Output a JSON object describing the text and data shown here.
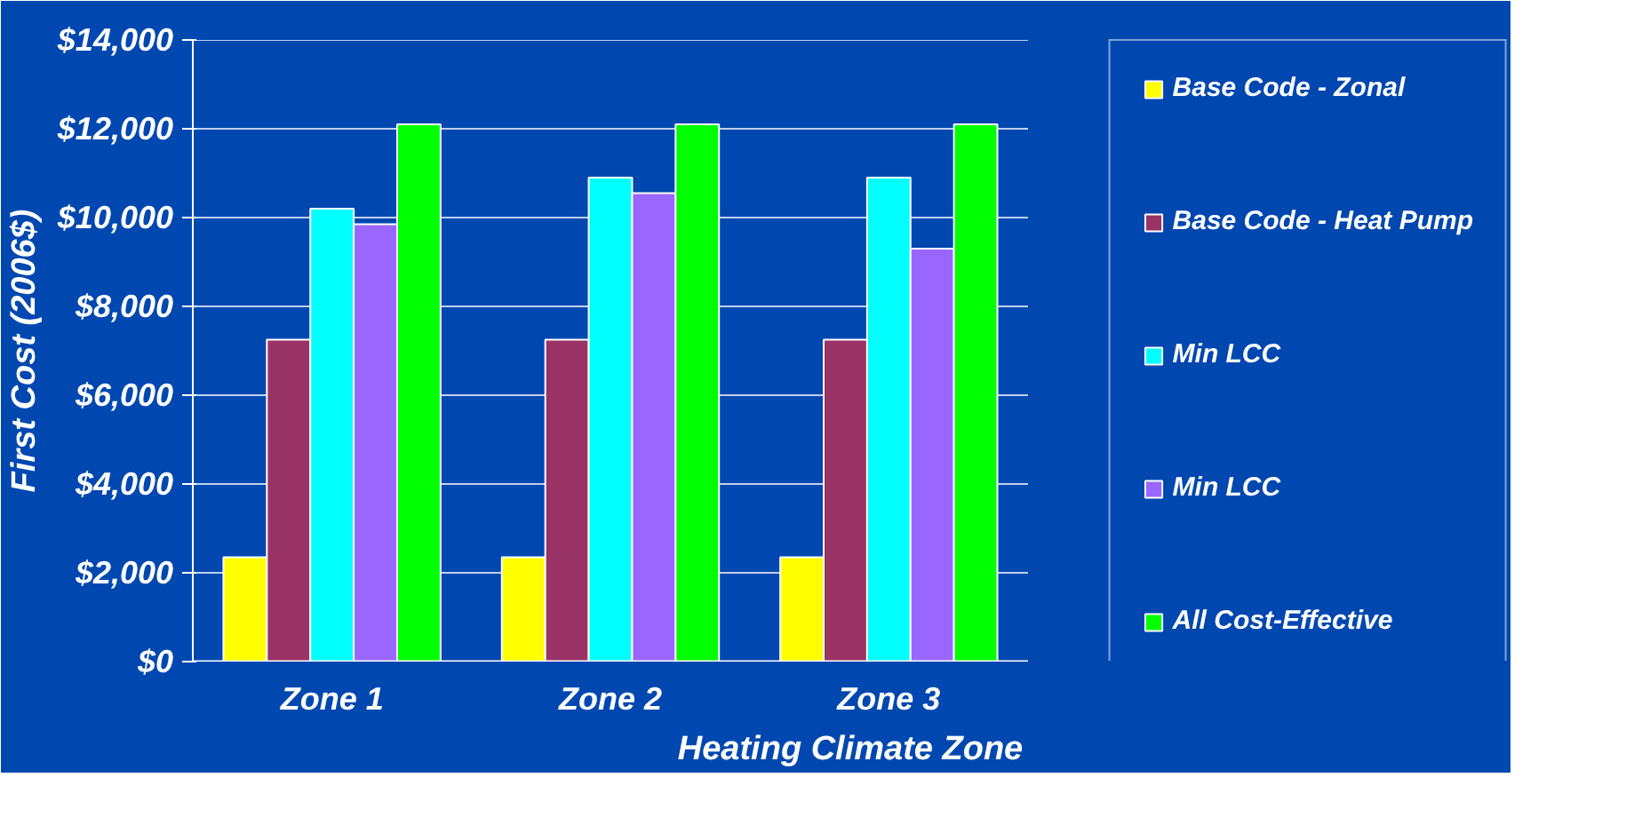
{
  "chart_data": {
    "type": "bar",
    "xlabel": "Heating Climate Zone",
    "ylabel": "First Cost (2006$)",
    "categories": [
      "Zone 1",
      "Zone 2",
      "Zone 3"
    ],
    "series": [
      {
        "name": "Base Code - Zonal",
        "color": "#ffff00",
        "values": [
          2350,
          2350,
          2350
        ]
      },
      {
        "name": "Base Code - Heat Pump",
        "color": "#993366",
        "values": [
          7250,
          7250,
          7250
        ]
      },
      {
        "name": "Min LCC",
        "color": "#00ffff",
        "values": [
          10200,
          10900,
          10900
        ]
      },
      {
        "name": "Min LCC",
        "color": "#9966ff",
        "values": [
          9850,
          10550,
          9300
        ]
      },
      {
        "name": "All Cost-Effective",
        "color": "#00ff00",
        "values": [
          12100,
          12100,
          12100
        ]
      }
    ],
    "ylim": [
      0,
      14000
    ],
    "yticks": [
      {
        "value": 0,
        "label": "$0"
      },
      {
        "value": 2000,
        "label": "$2,000"
      },
      {
        "value": 4000,
        "label": "$4,000"
      },
      {
        "value": 6000,
        "label": "$6,000"
      },
      {
        "value": 8000,
        "label": "$8,000"
      },
      {
        "value": 10000,
        "label": "$10,000"
      },
      {
        "value": 12000,
        "label": "$12,000"
      },
      {
        "value": 14000,
        "label": "$14,000"
      }
    ],
    "grid": "y",
    "legend": "right"
  }
}
